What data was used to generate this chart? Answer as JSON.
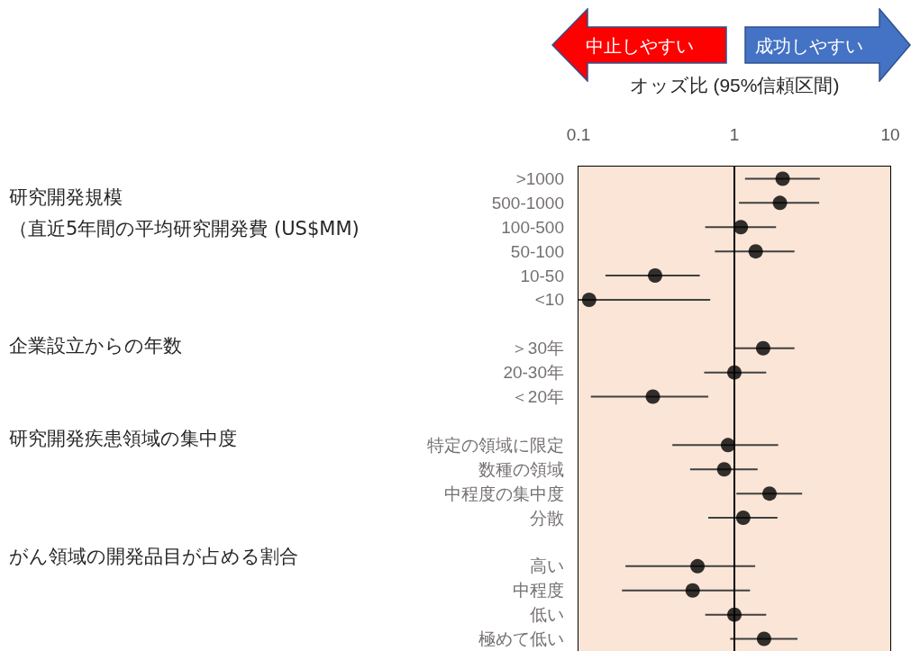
{
  "chart_data": {
    "type": "scatter",
    "xlabel": "オッズ比 (95%信頼区間)",
    "categories": [
      ">1000",
      "500-1000",
      "100-500",
      "50-100",
      "10-50",
      "<10",
      null,
      "＞30年",
      "20-30年",
      "＜20年",
      null,
      "特定の領域に限定",
      "数種の領域",
      "中程度の集中度",
      "分散",
      null,
      "高い",
      "中程度",
      "低い",
      "極めて低い"
    ],
    "series": [
      {
        "color": "#000000",
        "values": [
          2.04,
          1.96,
          1.1,
          1.37,
          0.31,
          0.117,
          null,
          1.53,
          1.0,
          0.3,
          null,
          0.91,
          0.86,
          1.68,
          1.14,
          null,
          0.58,
          0.54,
          1.0,
          1.55
        ],
        "errors": [
          [
            1.17,
            3.53
          ],
          [
            1.07,
            3.5
          ],
          [
            0.65,
            1.85
          ],
          [
            0.75,
            2.43
          ],
          [
            0.149,
            0.6
          ],
          [
            0.1,
            0.7
          ],
          null,
          [
            1.0,
            2.43
          ],
          [
            0.64,
            1.6
          ],
          [
            0.12,
            0.68
          ],
          null,
          [
            0.4,
            1.91
          ],
          [
            0.52,
            1.41
          ],
          [
            1.03,
            2.72
          ],
          [
            0.68,
            1.89
          ],
          null,
          [
            0.2,
            1.36
          ],
          [
            0.19,
            1.26
          ],
          [
            0.65,
            1.6
          ],
          [
            0.94,
            2.54
          ]
        ]
      }
    ],
    "orientation": "horizontal",
    "log": "x",
    "xlim": [
      0.1,
      10
    ],
    "xticks": [
      0.1,
      1,
      10
    ],
    "marker": "circle",
    "grid": false,
    "ref_lines": [
      {
        "axis": "x",
        "value": 1,
        "color": "#000000"
      }
    ],
    "bands": [
      {
        "axis": "x",
        "from": 0.1,
        "to": 10,
        "color": "#fbe5d6"
      }
    ],
    "annotations": [
      "中止しやすい",
      "成功しやすい",
      "研究開発規模",
      "（直近5年間の平均研究開発費 (US$MM)",
      "企業設立からの年数",
      "研究開発疾患領域の集中度",
      "がん領域の開発品目が占める割合"
    ]
  }
}
